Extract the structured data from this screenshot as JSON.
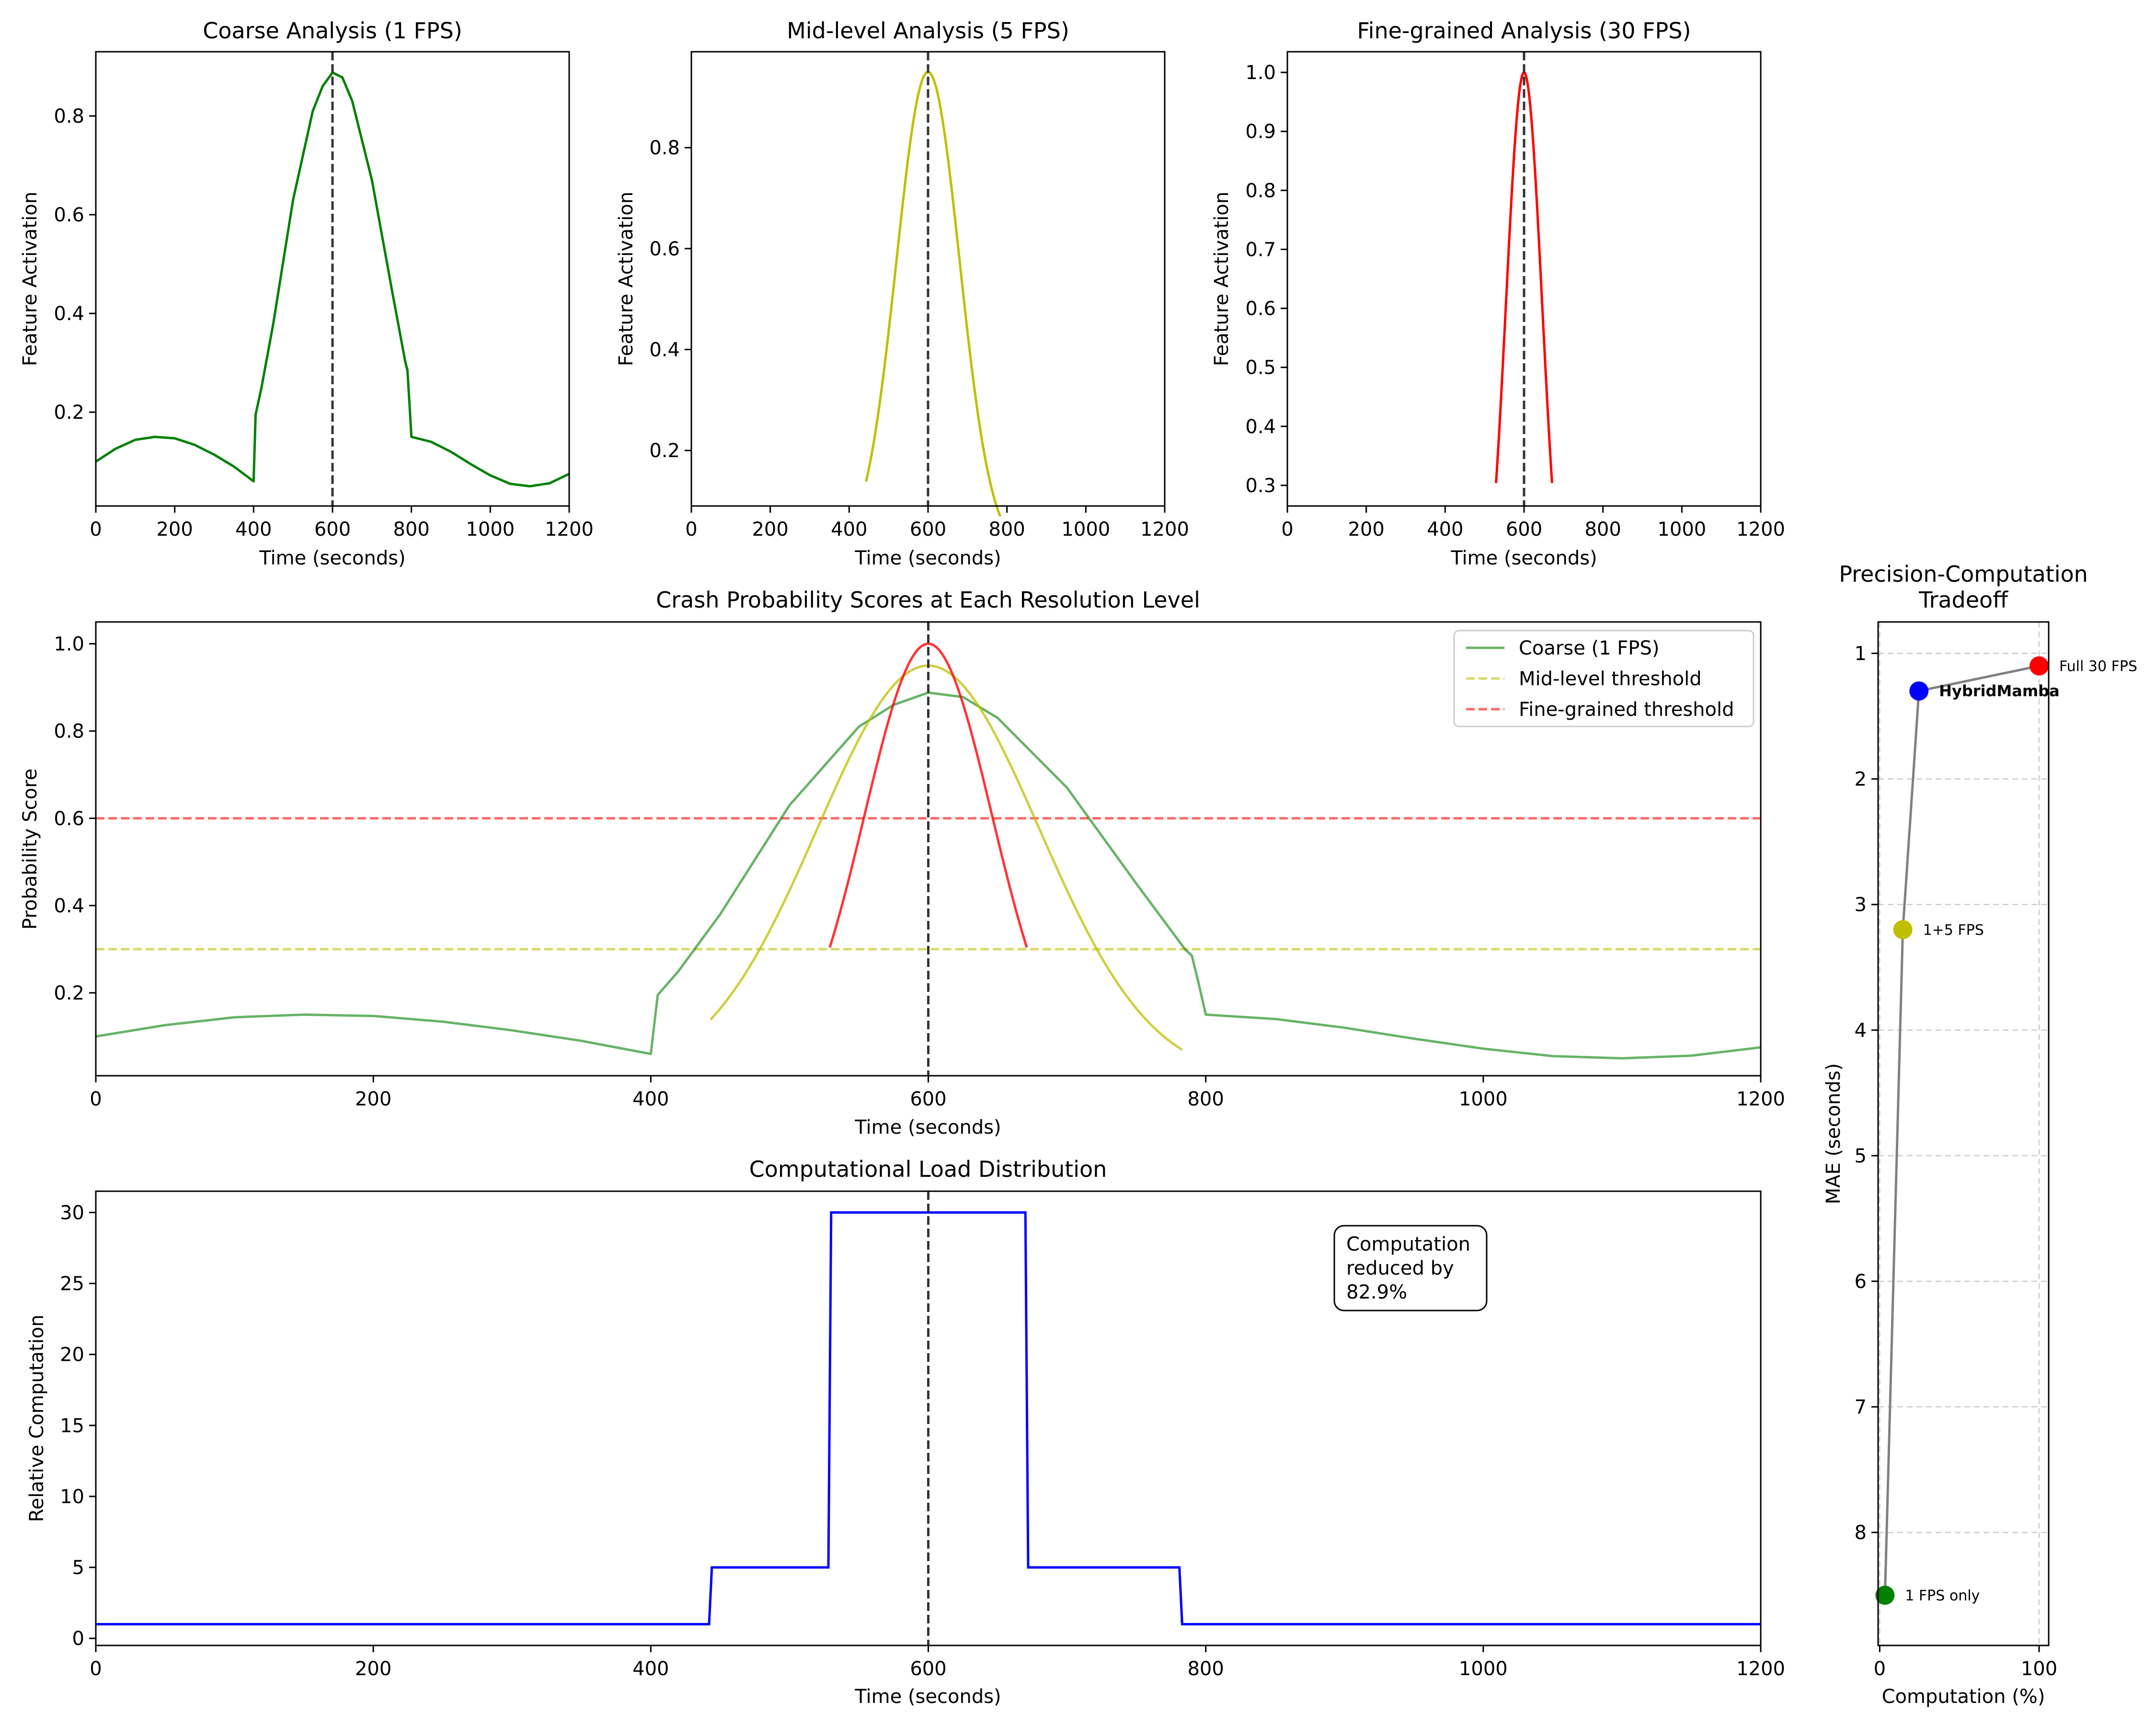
{
  "colors": {
    "coarse": "#008000",
    "mid": "#bfbf00",
    "fine": "#ff0000",
    "load": "#0000ff",
    "tradeoff_line": "#808080",
    "peak_line": "#333333",
    "grid": "#cccccc"
  },
  "chart_data": [
    {
      "id": "coarse",
      "type": "line",
      "title": "Coarse Analysis (1 FPS)",
      "xlabel": "Time (seconds)",
      "ylabel": "Feature Activation",
      "xlim": [
        0,
        1200
      ],
      "ylim": [
        0.01,
        0.93
      ],
      "xticks": [
        0,
        200,
        400,
        600,
        800,
        1000,
        1200
      ],
      "yticks": [
        0.2,
        0.4,
        0.6,
        0.8
      ],
      "vline_x": 600,
      "series": [
        {
          "name": "Coarse (1 FPS)",
          "color_key": "coarse",
          "x": [
            0,
            50,
            100,
            150,
            200,
            250,
            300,
            350,
            400,
            405,
            420,
            450,
            500,
            550,
            575,
            600,
            625,
            650,
            700,
            750,
            785,
            790,
            795,
            800,
            850,
            900,
            950,
            1000,
            1050,
            1100,
            1150,
            1200
          ],
          "y": [
            0.1,
            0.126,
            0.144,
            0.15,
            0.147,
            0.134,
            0.114,
            0.09,
            0.06,
            0.195,
            0.25,
            0.38,
            0.63,
            0.81,
            0.86,
            0.888,
            0.878,
            0.83,
            0.67,
            0.45,
            0.3,
            0.285,
            0.22,
            0.15,
            0.14,
            0.12,
            0.095,
            0.072,
            0.055,
            0.05,
            0.056,
            0.075
          ]
        }
      ]
    },
    {
      "id": "mid",
      "type": "line",
      "title": "Mid-level Analysis (5 FPS)",
      "xlabel": "Time (seconds)",
      "ylabel": "Feature Activation",
      "xlim": [
        0,
        1200
      ],
      "ylim": [
        0.09,
        0.99
      ],
      "xticks": [
        0,
        200,
        400,
        600,
        800,
        1000,
        1200
      ],
      "yticks": [
        0.2,
        0.4,
        0.6,
        0.8
      ],
      "vline_x": 600,
      "series": [
        {
          "name": "Mid-level",
          "color_key": "mid",
          "kind": "gauss",
          "mu": 600,
          "sigma": 80,
          "amp": 0.95,
          "x0": 443,
          "x1": 783
        }
      ]
    },
    {
      "id": "fine",
      "type": "line",
      "title": "Fine-grained Analysis (30 FPS)",
      "xlabel": "Time (seconds)",
      "ylabel": "Feature Activation",
      "xlim": [
        0,
        1200
      ],
      "ylim": [
        0.265,
        1.035
      ],
      "xticks": [
        0,
        200,
        400,
        600,
        800,
        1000,
        1200
      ],
      "yticks": [
        0.3,
        0.4,
        0.5,
        0.6,
        0.7,
        0.8,
        0.9,
        1.0
      ],
      "vline_x": 600,
      "series": [
        {
          "name": "Fine-grained",
          "color_key": "fine",
          "kind": "gauss",
          "mu": 600,
          "sigma": 46,
          "amp": 1.0,
          "x0": 529,
          "x1": 671
        }
      ]
    },
    {
      "id": "probability",
      "type": "line",
      "title": "Crash Probability Scores at Each Resolution Level",
      "xlabel": "Time (seconds)",
      "ylabel": "Probability Score",
      "xlim": [
        0,
        1200
      ],
      "ylim": [
        0.01,
        1.05
      ],
      "xticks": [
        0,
        200,
        400,
        600,
        800,
        1000,
        1200
      ],
      "yticks": [
        0.2,
        0.4,
        0.6,
        0.8,
        1.0
      ],
      "vline_x": 600,
      "thresholds": [
        {
          "name": "Mid-level threshold",
          "y": 0.3,
          "color_key": "mid"
        },
        {
          "name": "Fine-grained threshold",
          "y": 0.6,
          "color_key": "fine"
        }
      ],
      "legend": [
        "Coarse (1 FPS)",
        "Mid-level threshold",
        "Fine-grained threshold"
      ],
      "legend_loc": "upper right"
    },
    {
      "id": "load",
      "type": "step",
      "title": "Computational Load Distribution",
      "xlabel": "Time (seconds)",
      "ylabel": "Relative Computation",
      "xlim": [
        0,
        1200
      ],
      "ylim": [
        -0.5,
        31.5
      ],
      "xticks": [
        0,
        200,
        400,
        600,
        800,
        1000,
        1200
      ],
      "yticks": [
        0,
        5,
        10,
        15,
        20,
        25,
        30
      ],
      "vline_x": 600,
      "series": [
        {
          "name": "Load",
          "color_key": "load",
          "x": [
            0,
            442,
            444,
            528,
            530,
            670,
            672,
            781,
            783,
            1200
          ],
          "y": [
            1,
            1,
            5,
            5,
            30,
            30,
            5,
            5,
            1,
            1
          ]
        }
      ],
      "annotation": [
        "Computation",
        "reduced by",
        "82.9%"
      ]
    },
    {
      "id": "tradeoff",
      "type": "scatter",
      "title": [
        "Precision-Computation",
        "Tradeoff"
      ],
      "xlabel": "Computation (%)",
      "ylabel": "MAE (seconds)",
      "xlim": [
        -1,
        106
      ],
      "ylim": [
        8.9,
        0.75
      ],
      "y_inverted": true,
      "xticks": [
        0,
        100
      ],
      "yticks": [
        1,
        2,
        3,
        4,
        5,
        6,
        7,
        8
      ],
      "grid": "y dashed",
      "points": [
        {
          "label": "1 FPS only",
          "x": 3.3,
          "y": 8.5,
          "color_key": "coarse",
          "bold": false
        },
        {
          "label": "1+5 FPS",
          "x": 14.5,
          "y": 3.2,
          "color_key": "mid",
          "bold": false
        },
        {
          "label": "HybridMamba",
          "x": 24.6,
          "y": 1.3,
          "color_key": "load",
          "bold": true
        },
        {
          "label": "Full 30 FPS",
          "x": 100,
          "y": 1.1,
          "color_key": "fine",
          "bold": false
        }
      ]
    }
  ]
}
